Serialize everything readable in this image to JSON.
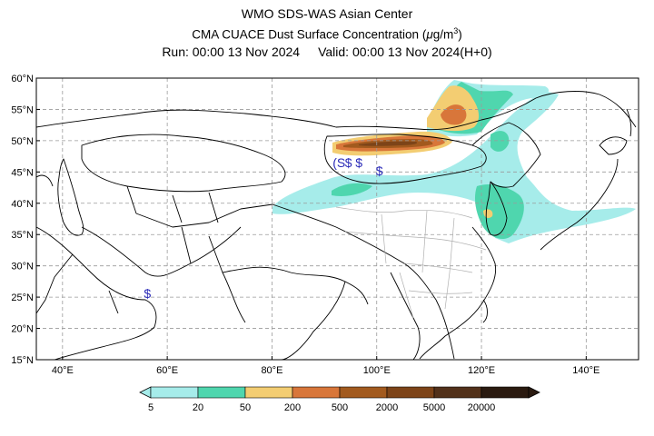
{
  "header": {
    "line1": "WMO SDS-WAS Asian Center",
    "line2_text": "CMA CUACE Dust Surface Concentration (",
    "unit_mu": "μ",
    "unit_rest": "g/m",
    "unit_exp": "3",
    "unit_close": ")",
    "run": "Run: 00:00 13 Nov 2024",
    "valid": "Valid: 00:00 13 Nov 2024(H+0)"
  },
  "map": {
    "lon_range": [
      35,
      150
    ],
    "lat_range": [
      15,
      60
    ],
    "lat_labels": [
      {
        "lat": 60,
        "label": "60°N"
      },
      {
        "lat": 55,
        "label": "55°N"
      },
      {
        "lat": 50,
        "label": "50°N"
      },
      {
        "lat": 45,
        "label": "45°N"
      },
      {
        "lat": 40,
        "label": "40°N"
      },
      {
        "lat": 35,
        "label": "35°N"
      },
      {
        "lat": 30,
        "label": "30°N"
      },
      {
        "lat": 25,
        "label": "25°N"
      },
      {
        "lat": 20,
        "label": "20°N"
      },
      {
        "lat": 15,
        "label": "15°N"
      }
    ],
    "lon_labels": [
      {
        "lon": 40,
        "label": "40°E"
      },
      {
        "lon": 60,
        "label": "60°E"
      },
      {
        "lon": 80,
        "label": "80°E"
      },
      {
        "lon": 100,
        "label": "100°E"
      },
      {
        "lon": 120,
        "label": "120°E"
      },
      {
        "lon": 140,
        "label": "140°E"
      }
    ],
    "gridlines": true,
    "station_symbols": [
      {
        "lon": 92.8,
        "lat": 46.5,
        "label": "(S"
      },
      {
        "lon": 94.6,
        "lat": 46.5,
        "label": "$"
      },
      {
        "lon": 96.6,
        "lat": 46.5,
        "label": "$"
      },
      {
        "lon": 100.5,
        "lat": 45.2,
        "label": "$"
      },
      {
        "lon": 56.2,
        "lat": 25.6,
        "label": "$"
      }
    ]
  },
  "colorbar": {
    "colors": [
      "#a6ecea",
      "#4fd6ae",
      "#f3cd72",
      "#d8763a",
      "#a25a1e",
      "#7d4418",
      "#52311a",
      "#2a1a10"
    ],
    "labels": [
      "5",
      "20",
      "50",
      "200",
      "500",
      "2000",
      "5000",
      "20000"
    ],
    "extend": "both"
  }
}
